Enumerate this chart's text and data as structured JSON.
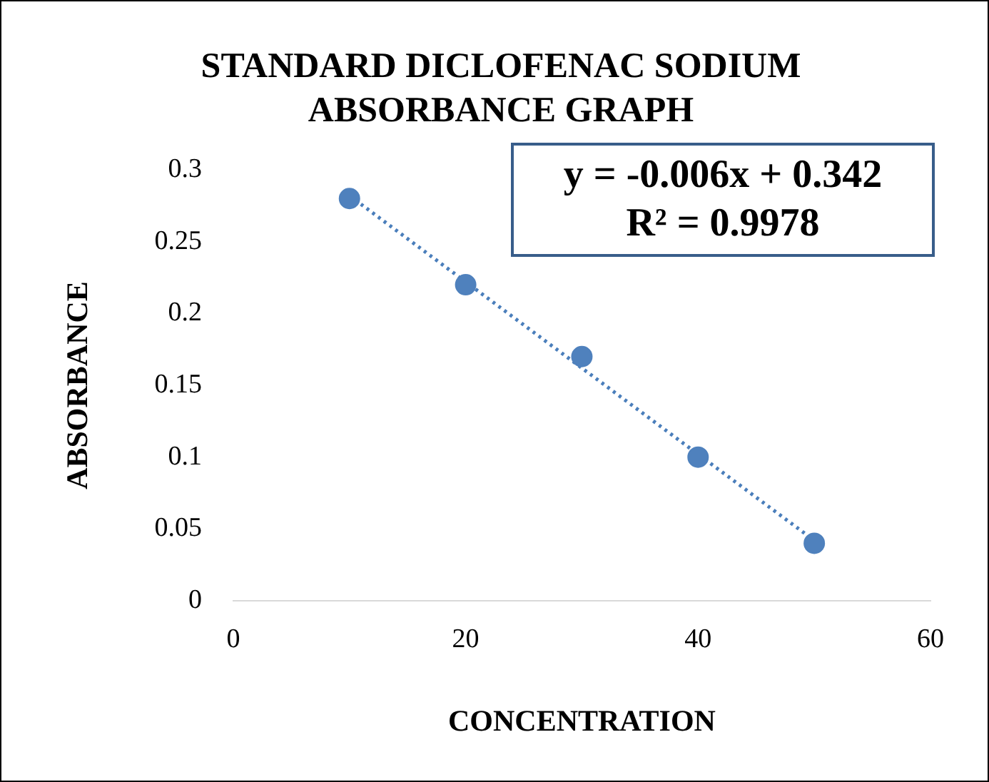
{
  "chart_data": {
    "type": "scatter",
    "title": "STANDARD DICLOFENAC SODIUM ABSORBANCE GRAPH",
    "xlabel": "CONCENTRATION",
    "ylabel": "ABSORBANCE",
    "x": [
      10,
      20,
      30,
      40,
      50
    ],
    "series": [
      {
        "type": "scatter",
        "color": "#4f81bd",
        "marker": "circle",
        "values": [
          0.28,
          0.22,
          0.17,
          0.1,
          0.04
        ]
      },
      {
        "type": "line",
        "color": "#4a7ebb",
        "marker": "none",
        "line_style": "dotted",
        "x": [
          10,
          50
        ],
        "values": [
          0.282,
          0.042
        ]
      }
    ],
    "annotations": [
      "y = -0.006x + 0.342",
      "R² = 0.9978"
    ],
    "xlim": [
      0,
      60
    ],
    "xticks": [
      0,
      20,
      40,
      60
    ],
    "ylim": [
      0,
      0.3
    ],
    "yticks": [
      0,
      0.05,
      0.1,
      0.15,
      0.2,
      0.25,
      0.3
    ],
    "grid": false,
    "legend": false
  }
}
